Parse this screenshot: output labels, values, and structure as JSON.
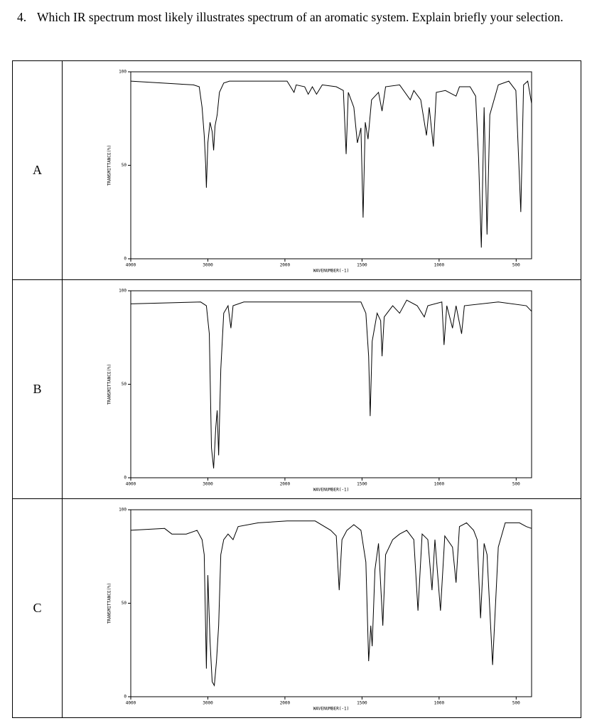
{
  "question": {
    "number": "4.",
    "text": "Which IR spectrum most likely illustrates spectrum of an aromatic system. Explain briefly your selection."
  },
  "rows": [
    "A",
    "B",
    "C"
  ],
  "chart_data": [
    {
      "type": "line",
      "ylabel": "TRANSMITTANCE(%)",
      "xlabel": "WAVENUMBER(-1)",
      "xlim": [
        4000,
        400
      ],
      "xbreak": 2000,
      "xticks": [
        4000,
        3000,
        2000,
        1500,
        1000,
        500
      ],
      "ylim": [
        0,
        100
      ],
      "yticks": [
        0,
        50,
        100
      ],
      "color": "#000000",
      "x": [
        4000,
        3187,
        3112,
        3075,
        3047,
        3028,
        3019,
        3000,
        2972,
        2944,
        2925,
        2907,
        2879,
        2850,
        2794,
        2720,
        1986,
        1941,
        1927,
        1872,
        1849,
        1822,
        1795,
        1758,
        1667,
        1621,
        1603,
        1589,
        1553,
        1530,
        1507,
        1493,
        1479,
        1461,
        1438,
        1393,
        1370,
        1347,
        1256,
        1187,
        1164,
        1119,
        1082,
        1064,
        1037,
        1018,
        959,
        890,
        868,
        799,
        763,
        744,
        726,
        708,
        689,
        671,
        616,
        548,
        502,
        470,
        452,
        425,
        400
      ],
      "values": [
        95,
        93,
        92,
        81,
        66,
        50,
        38,
        62,
        73,
        68,
        58,
        71,
        77,
        89,
        94,
        95,
        95,
        89,
        93,
        92,
        88,
        92,
        88,
        93,
        92,
        90,
        56,
        89,
        81,
        62,
        70,
        22,
        73,
        64,
        85,
        89,
        79,
        92,
        93,
        85,
        90,
        85,
        66,
        81,
        60,
        89,
        90,
        87,
        92,
        92,
        87,
        54,
        6,
        81,
        13,
        77,
        93,
        95,
        90,
        25,
        93,
        95,
        83
      ]
    },
    {
      "type": "line",
      "ylabel": "TRANSMITTANCE(%)",
      "xlabel": "WAVENUMBER(-1)",
      "xlim": [
        4000,
        400
      ],
      "xbreak": 2000,
      "xticks": [
        4000,
        3000,
        2000,
        1500,
        1000,
        500
      ],
      "ylim": [
        0,
        100
      ],
      "yticks": [
        0,
        50,
        100
      ],
      "color": "#000000",
      "x": [
        4000,
        3093,
        3019,
        2981,
        2953,
        2925,
        2897,
        2879,
        2860,
        2832,
        2794,
        2738,
        2701,
        2673,
        2533,
        1986,
        1507,
        1475,
        1457,
        1447,
        1434,
        1402,
        1379,
        1370,
        1356,
        1301,
        1256,
        1210,
        1142,
        1096,
        1073,
        982,
        968,
        950,
        913,
        890,
        854,
        836,
        616,
        434,
        400
      ],
      "values": [
        93,
        94,
        92,
        77,
        16,
        5,
        27,
        36,
        12,
        58,
        88,
        92,
        80,
        92,
        94,
        94,
        94,
        88,
        65,
        33,
        73,
        88,
        84,
        65,
        86,
        92,
        88,
        95,
        92,
        86,
        92,
        94,
        71,
        92,
        80,
        92,
        77,
        92,
        94,
        92,
        89
      ]
    },
    {
      "type": "line",
      "ylabel": "TRANSMITTANCE(%)",
      "xlabel": "WAVENUMBER(-1)",
      "xlim": [
        4000,
        400
      ],
      "xbreak": 2000,
      "xticks": [
        4000,
        3000,
        2000,
        1500,
        1000,
        500
      ],
      "ylim": [
        0,
        100
      ],
      "yticks": [
        0,
        50,
        100
      ],
      "color": "#000000",
      "x": [
        4000,
        3561,
        3467,
        3280,
        3140,
        3075,
        3047,
        3019,
        3000,
        2972,
        2944,
        2916,
        2888,
        2860,
        2832,
        2794,
        2738,
        2673,
        2607,
        2346,
        1986,
        1804,
        1703,
        1667,
        1648,
        1630,
        1598,
        1553,
        1507,
        1475,
        1457,
        1443,
        1434,
        1416,
        1393,
        1365,
        1347,
        1301,
        1256,
        1210,
        1164,
        1137,
        1110,
        1073,
        1046,
        1027,
        991,
        963,
        913,
        890,
        868,
        822,
        776,
        753,
        731,
        708,
        689,
        653,
        616,
        571,
        479,
        434,
        400
      ],
      "values": [
        89,
        90,
        87,
        87,
        89,
        84,
        76,
        15,
        65,
        30,
        8,
        6,
        19,
        38,
        76,
        84,
        87,
        84,
        91,
        93,
        94,
        94,
        89,
        86,
        57,
        84,
        89,
        92,
        89,
        72,
        19,
        38,
        27,
        68,
        82,
        38,
        76,
        84,
        87,
        89,
        84,
        46,
        87,
        84,
        57,
        84,
        46,
        86,
        80,
        61,
        91,
        93,
        89,
        84,
        42,
        82,
        76,
        17,
        80,
        93,
        93,
        91,
        90
      ]
    }
  ]
}
